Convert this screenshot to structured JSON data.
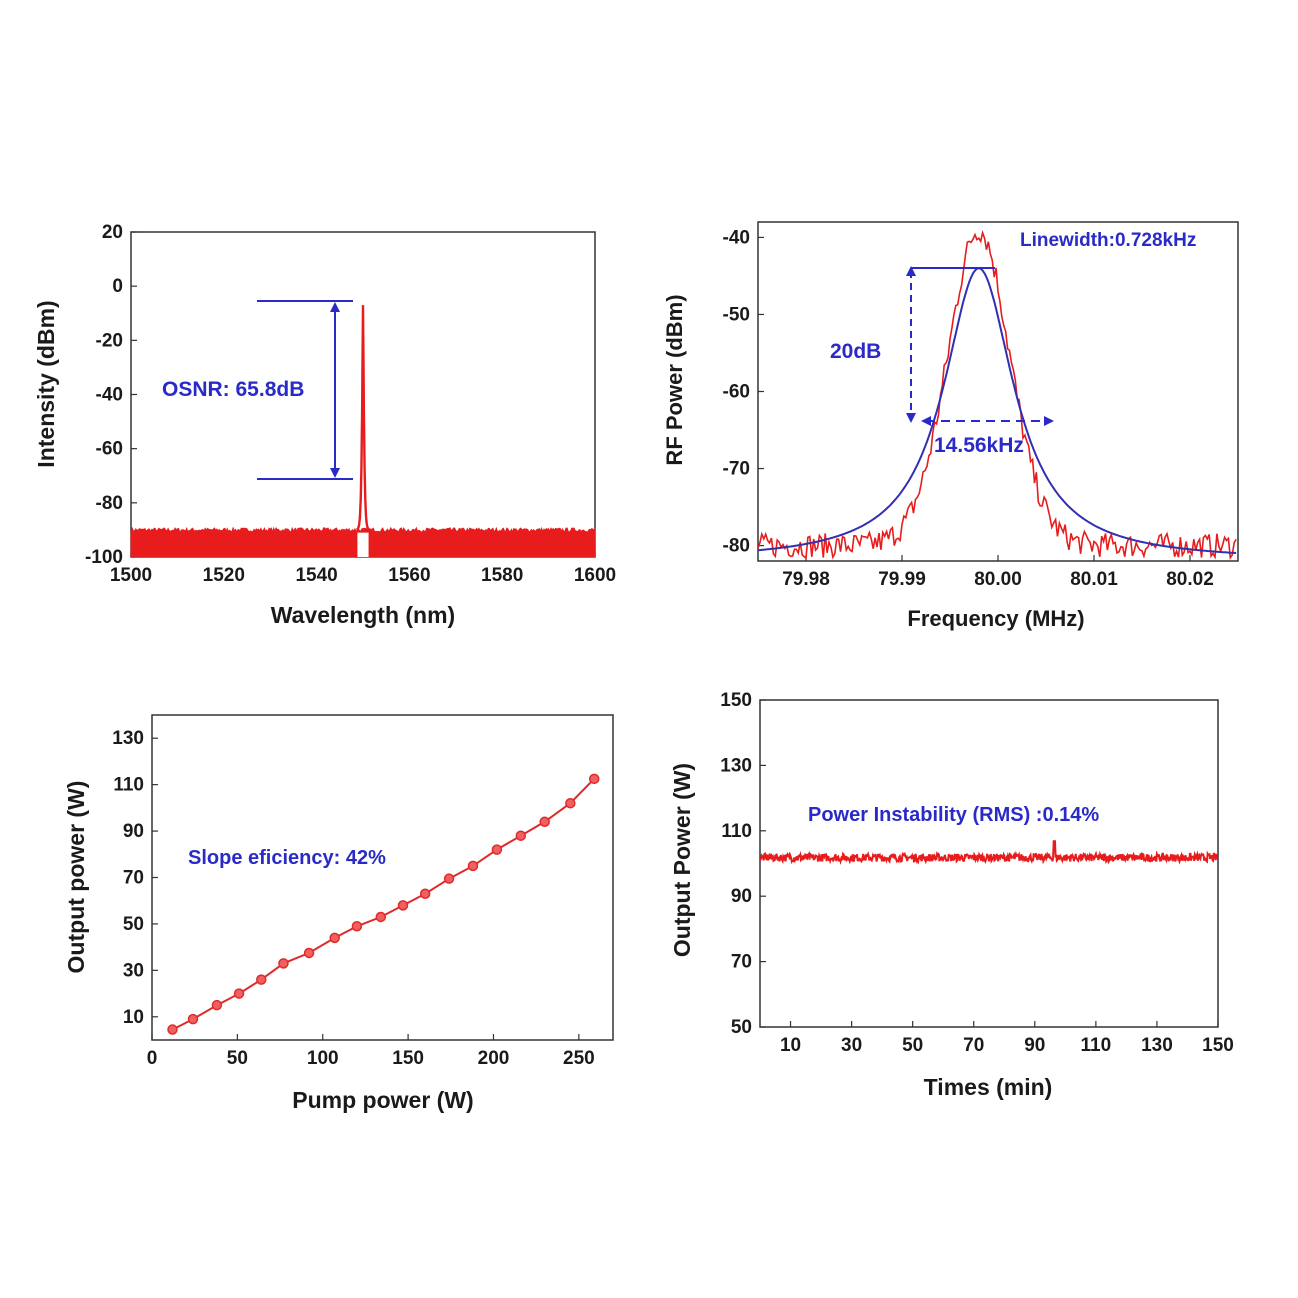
{
  "chart_data": [
    {
      "type": "line",
      "title": "",
      "xlabel": "Wavelength (nm)",
      "ylabel": "Intensity (dBm)",
      "xlim": [
        1500,
        1600
      ],
      "ylim": [
        -100,
        20
      ],
      "xticks": [
        1500,
        1520,
        1540,
        1560,
        1580,
        1600
      ],
      "xtick_labels": [
        "1500",
        "1520",
        "1540",
        "1560",
        "1580",
        "1600"
      ],
      "yticks": [
        -100,
        -80,
        -60,
        -40,
        -20,
        0,
        20
      ],
      "ytick_labels": [
        "-100",
        "-80",
        "-60",
        "-40",
        "-20",
        "0",
        "20"
      ],
      "series": [
        {
          "color": "#e81c1c",
          "noise_floor_range": [
            -100,
            -90
          ],
          "peak": {
            "x": 1550,
            "y": -7
          }
        }
      ],
      "annotations": [
        {
          "text": "OSNR:  65.8dB",
          "color": "#2a2ac8",
          "range_y": [
            -72,
            -7
          ],
          "x": 1540
        }
      ],
      "grid": false
    },
    {
      "type": "line",
      "title": "",
      "xlabel": "Frequency (MHz)",
      "ylabel": "RF Power (dBm)",
      "xlim": [
        79.975,
        80.025
      ],
      "ylim": [
        -82,
        -38
      ],
      "xticks": [
        79.98,
        79.99,
        80.0,
        80.01,
        80.02
      ],
      "xtick_labels": [
        "79.98",
        "79.99",
        "80.00",
        "80.01",
        "80.02"
      ],
      "yticks": [
        -80,
        -70,
        -60,
        -50,
        -40
      ],
      "ytick_labels": [
        "-80",
        "-70",
        "-60",
        "-50",
        "-40"
      ],
      "series": [
        {
          "type": "measured",
          "color": "#e81c1c",
          "center": 79.998,
          "peak": -41,
          "floor": -80
        },
        {
          "type": "fit",
          "color": "#3030b0",
          "center": 79.998,
          "peak": -44,
          "floor": -80
        }
      ],
      "annotations": [
        {
          "text": "Linewidth:0.728kHz",
          "color": "#2a2ac8"
        },
        {
          "text": "20dB",
          "color": "#2a2ac8",
          "range_y": [
            -64,
            -44
          ]
        },
        {
          "text": "14.56kHz",
          "color": "#2a2ac8",
          "range_x": [
            79.9913,
            80.0053
          ],
          "y": -64
        }
      ],
      "grid": false
    },
    {
      "type": "line",
      "title": "",
      "xlabel": "Pump power (W)",
      "ylabel": "Output power (W)",
      "xlim": [
        0,
        270
      ],
      "ylim": [
        0,
        140
      ],
      "xticks": [
        0,
        50,
        100,
        150,
        200,
        250
      ],
      "xtick_labels": [
        "0",
        "50",
        "100",
        "150",
        "200",
        "250"
      ],
      "yticks": [
        10,
        30,
        50,
        70,
        90,
        110,
        130
      ],
      "ytick_labels": [
        "10",
        "30",
        "50",
        "70",
        "90",
        "110",
        "130"
      ],
      "series": [
        {
          "color": "#e02a2a",
          "x": [
            12,
            24,
            38,
            51,
            64,
            77,
            92,
            107,
            120,
            134,
            147,
            160,
            174,
            188,
            202,
            216,
            230,
            245,
            259
          ],
          "y": [
            4.5,
            9,
            15,
            20,
            26,
            33,
            37.5,
            44,
            49,
            53,
            58,
            63,
            69.5,
            75,
            82,
            88,
            94,
            102,
            112.5
          ]
        }
      ],
      "annotations": [
        {
          "text": "Slope eficiency:  42%",
          "color": "#2a2ac8"
        }
      ],
      "grid": false
    },
    {
      "type": "line",
      "title": "",
      "xlabel": "Times (min)",
      "ylabel": "Output Power (W)",
      "xlim": [
        0,
        150
      ],
      "ylim": [
        50,
        150
      ],
      "xticks": [
        10,
        30,
        50,
        70,
        90,
        110,
        130,
        150
      ],
      "xtick_labels": [
        "10",
        "30",
        "50",
        "70",
        "90",
        "110",
        "130",
        "150"
      ],
      "yticks": [
        50,
        70,
        90,
        110,
        130,
        150
      ],
      "ytick_labels": [
        "50",
        "70",
        "90",
        "110",
        "130",
        "150"
      ],
      "series": [
        {
          "color": "#e81c1c",
          "mean": 101.8,
          "fluctuation": 1.5
        }
      ],
      "annotations": [
        {
          "text": "Power Instability  (RMS)  :0.14%",
          "color": "#2a2ac8"
        }
      ],
      "grid": false
    }
  ]
}
